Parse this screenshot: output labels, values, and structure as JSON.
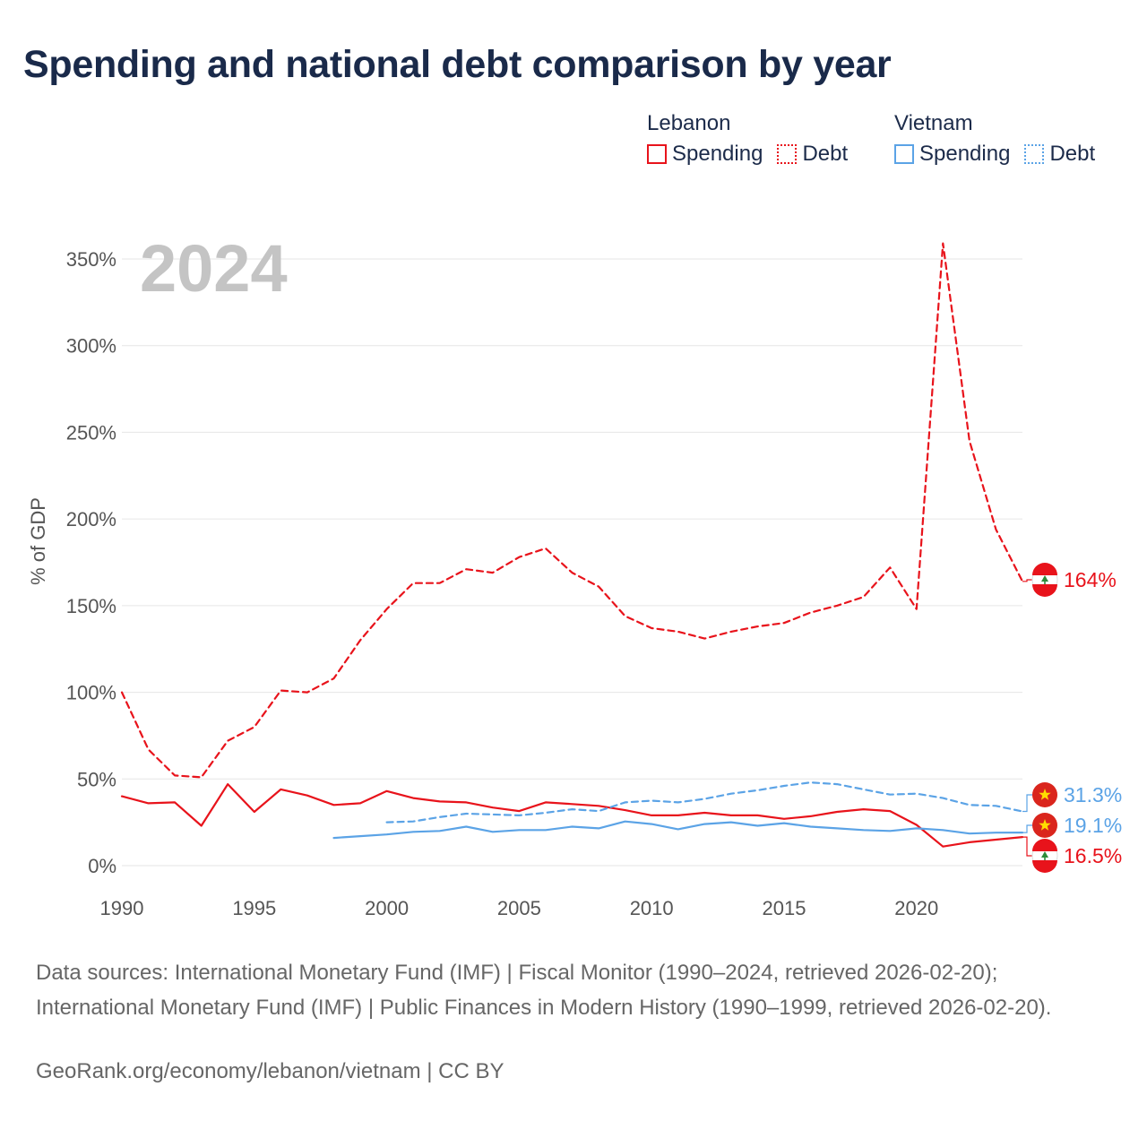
{
  "title": "Spending and national debt comparison by year",
  "legend": {
    "groups": [
      {
        "name": "Lebanon",
        "color": "#e8131b",
        "items": [
          {
            "label": "Spending",
            "style": "solid"
          },
          {
            "label": "Debt",
            "style": "dotted"
          }
        ]
      },
      {
        "name": "Vietnam",
        "color": "#5ba3e6",
        "items": [
          {
            "label": "Spending",
            "style": "solid"
          },
          {
            "label": "Debt",
            "style": "dotted"
          }
        ]
      }
    ]
  },
  "year_label": "2024",
  "source_text": "Data sources: International Monetary Fund (IMF) | Fiscal Monitor (1990–2024, retrieved 2026-02-20); International Monetary Fund (IMF) | Public Finances in Modern History (1990–1999, retrieved 2026-02-20).",
  "credit_text": "GeoRank.org/economy/lebanon/vietnam | CC BY",
  "chart_data": {
    "type": "line",
    "title": "Spending and national debt comparison by year",
    "xlabel": "",
    "ylabel": "% of GDP",
    "xlim": [
      1990,
      2024
    ],
    "ylim": [
      0,
      360
    ],
    "x_ticks": [
      1990,
      1995,
      2000,
      2005,
      2010,
      2015,
      2020
    ],
    "x_tick_labels": [
      "1990",
      "1995",
      "2000",
      "2005",
      "2010",
      "2015",
      "2020"
    ],
    "y_ticks": [
      0,
      50,
      100,
      150,
      200,
      250,
      300,
      350
    ],
    "y_tick_labels": [
      "0%",
      "50%",
      "100%",
      "150%",
      "200%",
      "250%",
      "300%",
      "350%"
    ],
    "grid": true,
    "series": [
      {
        "name": "Lebanon Debt",
        "country": "Lebanon",
        "kind": "debt",
        "color": "#e8131b",
        "dash": "dashed",
        "x": [
          1990,
          1991,
          1992,
          1993,
          1994,
          1995,
          1996,
          1997,
          1998,
          1999,
          2000,
          2001,
          2002,
          2003,
          2004,
          2005,
          2006,
          2007,
          2008,
          2009,
          2010,
          2011,
          2012,
          2013,
          2014,
          2015,
          2016,
          2017,
          2018,
          2019,
          2020,
          2021,
          2022,
          2023,
          2024
        ],
        "values": [
          100,
          67,
          52,
          51,
          72,
          80,
          101,
          100,
          108,
          130,
          148,
          163,
          163,
          171,
          169,
          178,
          183,
          169,
          161,
          144,
          137,
          135,
          131,
          135,
          138,
          140,
          146,
          150,
          155,
          172,
          148,
          359,
          245,
          194,
          164
        ],
        "end_label": "164%"
      },
      {
        "name": "Lebanon Spending",
        "country": "Lebanon",
        "kind": "spending",
        "color": "#e8131b",
        "dash": "solid",
        "x": [
          1990,
          1991,
          1992,
          1993,
          1994,
          1995,
          1996,
          1997,
          1998,
          1999,
          2000,
          2001,
          2002,
          2003,
          2004,
          2005,
          2006,
          2007,
          2008,
          2009,
          2010,
          2011,
          2012,
          2013,
          2014,
          2015,
          2016,
          2017,
          2018,
          2019,
          2020,
          2021,
          2022,
          2023,
          2024
        ],
        "values": [
          40,
          36,
          36.5,
          23,
          47,
          31,
          44,
          40.5,
          35,
          36,
          43,
          39,
          37,
          36.5,
          33.5,
          31.5,
          36.5,
          35.5,
          34.5,
          32,
          29,
          29,
          30.5,
          29,
          29,
          27,
          28.5,
          31,
          32.5,
          31.5,
          23.5,
          11,
          13.5,
          15,
          16.5
        ],
        "end_label": "16.5%"
      },
      {
        "name": "Vietnam Debt",
        "country": "Vietnam",
        "kind": "debt",
        "color": "#5ba3e6",
        "dash": "dashed",
        "x": [
          2000,
          2001,
          2002,
          2003,
          2004,
          2005,
          2006,
          2007,
          2008,
          2009,
          2010,
          2011,
          2012,
          2013,
          2014,
          2015,
          2016,
          2017,
          2018,
          2019,
          2020,
          2021,
          2022,
          2023,
          2024
        ],
        "values": [
          25,
          25.5,
          28,
          30,
          29.5,
          29,
          30.5,
          32.5,
          31.5,
          36.5,
          37.5,
          36.5,
          38.5,
          41.5,
          43.5,
          46,
          48,
          47,
          44,
          41,
          41.5,
          39,
          35,
          34.5,
          31.3
        ],
        "end_label": "31.3%"
      },
      {
        "name": "Vietnam Spending",
        "country": "Vietnam",
        "kind": "spending",
        "color": "#5ba3e6",
        "dash": "solid",
        "x": [
          1998,
          1999,
          2000,
          2001,
          2002,
          2003,
          2004,
          2005,
          2006,
          2007,
          2008,
          2009,
          2010,
          2011,
          2012,
          2013,
          2014,
          2015,
          2016,
          2017,
          2018,
          2019,
          2020,
          2021,
          2022,
          2023,
          2024
        ],
        "values": [
          16,
          17,
          18,
          19.5,
          20,
          22.5,
          19.5,
          20.5,
          20.5,
          22.5,
          21.5,
          25.5,
          24,
          21,
          24,
          25,
          23,
          24.5,
          22.5,
          21.5,
          20.5,
          20,
          21.5,
          20.5,
          18.5,
          19,
          19.1
        ],
        "end_label": "19.1%"
      }
    ],
    "end_flags": [
      {
        "series": "Lebanon Debt",
        "flag": "lebanon-flag"
      },
      {
        "series": "Vietnam Debt",
        "flag": "vietnam-flag"
      },
      {
        "series": "Vietnam Spending",
        "flag": "vietnam-flag"
      },
      {
        "series": "Lebanon Spending",
        "flag": "lebanon-flag"
      }
    ]
  }
}
